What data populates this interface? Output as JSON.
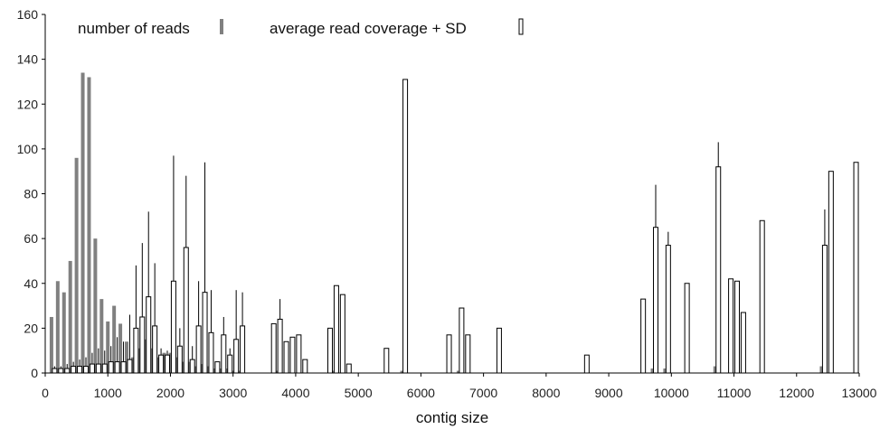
{
  "chart_data": {
    "type": "bar",
    "title": "",
    "xlabel": "contig size",
    "ylabel": "",
    "xlim": [
      0,
      13000
    ],
    "ylim": [
      0,
      160
    ],
    "x_ticks": [
      0,
      1000,
      2000,
      3000,
      4000,
      5000,
      6000,
      7000,
      8000,
      9000,
      10000,
      11000,
      12000,
      13000
    ],
    "y_ticks": [
      0,
      20,
      40,
      60,
      80,
      100,
      120,
      140,
      160
    ],
    "grid": false,
    "legend_position": "top-left",
    "series": [
      {
        "name": "number of reads",
        "style": "filled",
        "color": "#808080",
        "x": [
          100,
          200,
          300,
          400,
          500,
          600,
          700,
          800,
          900,
          1000,
          1100,
          1200,
          1300,
          1400,
          1500,
          1600,
          1700,
          1800,
          1900,
          2000,
          2100,
          2200,
          2300,
          2400,
          2500,
          2600,
          2700,
          2800,
          2900,
          3000,
          3100,
          3700,
          4600,
          5700,
          6600,
          9700,
          9900,
          10700,
          12400
        ],
        "values": [
          25,
          41,
          36,
          50,
          96,
          134,
          132,
          60,
          33,
          23,
          30,
          22,
          14,
          7,
          11,
          15,
          11,
          7,
          9,
          9,
          7,
          5,
          5,
          3,
          4,
          3,
          2,
          2,
          2,
          1,
          1,
          1,
          1,
          1,
          1,
          2,
          2,
          3,
          3
        ]
      },
      {
        "name": "average read coverage + SD",
        "style": "hollow",
        "color": "#000000",
        "x": [
          150,
          250,
          350,
          450,
          550,
          650,
          750,
          850,
          950,
          1050,
          1150,
          1250,
          1350,
          1450,
          1550,
          1650,
          1750,
          1850,
          1950,
          2050,
          2150,
          2250,
          2350,
          2450,
          2550,
          2650,
          2750,
          2850,
          2950,
          3050,
          3150,
          3650,
          3750,
          3850,
          3950,
          4050,
          4150,
          4550,
          4650,
          4750,
          4850,
          5450,
          5750,
          6450,
          6650,
          6750,
          7250,
          8650,
          9550,
          9750,
          9950,
          10250,
          10750,
          10950,
          11050,
          11150,
          11450,
          12450,
          12550,
          12950
        ],
        "values": [
          2,
          2,
          2,
          3,
          3,
          3,
          4,
          4,
          4,
          5,
          5,
          5,
          6,
          20,
          25,
          34,
          21,
          8,
          8,
          41,
          12,
          56,
          6,
          21,
          36,
          18,
          5,
          17,
          8,
          15,
          21,
          22,
          24,
          14,
          16,
          17,
          6,
          20,
          39,
          35,
          4,
          11,
          131,
          17,
          29,
          17,
          20,
          8,
          33,
          65,
          57,
          40,
          92,
          42,
          41,
          27,
          68,
          57,
          90,
          94
        ],
        "sd_tops": [
          3,
          3,
          4,
          5,
          6,
          7,
          9,
          11,
          10,
          12,
          16,
          14,
          26,
          48,
          58,
          72,
          49,
          11,
          10,
          97,
          20,
          88,
          12,
          41,
          94,
          37,
          5,
          25,
          11,
          37,
          36,
          22,
          33,
          14,
          16,
          17,
          6,
          20,
          39,
          35,
          4,
          11,
          131,
          17,
          29,
          17,
          20,
          8,
          33,
          84,
          63,
          40,
          103,
          42,
          41,
          27,
          68,
          73,
          90,
          94
        ]
      }
    ]
  }
}
